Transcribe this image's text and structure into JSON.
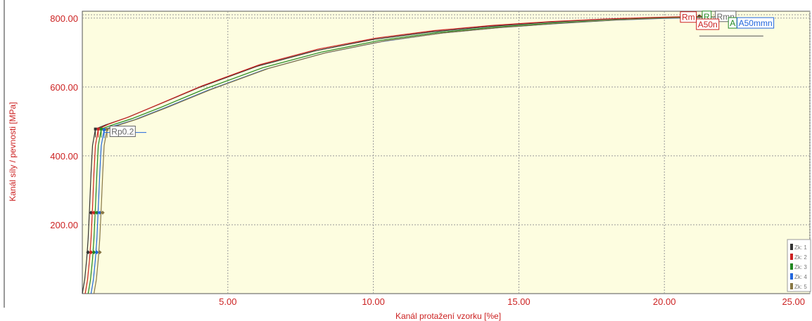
{
  "chart_data": {
    "type": "line",
    "xlabel": "Kanál protažení vzorku  [%e]",
    "ylabel": "Kanál síly / pevnosti  [MPa]",
    "xlim": [
      0,
      25
    ],
    "ylim": [
      0,
      820
    ],
    "x_ticks": [
      "5.00",
      "10.00",
      "15.00",
      "20.00",
      "25.00"
    ],
    "y_ticks": [
      "200.00",
      "400.00",
      "600.00",
      "800.00"
    ],
    "grid": true,
    "plot_background": "#fdfde0",
    "legend": {
      "placement": "bottom-right",
      "entries": [
        {
          "label": "Zk: 1",
          "color": "#333333"
        },
        {
          "label": "Zk: 2",
          "color": "#cc2222"
        },
        {
          "label": "Zk: 3",
          "color": "#228822"
        },
        {
          "label": "Zk: 4",
          "color": "#2266dd"
        },
        {
          "label": "Zk: 5",
          "color": "#887744"
        }
      ]
    },
    "series": [
      {
        "name": "Zk: 1",
        "color": "#333333",
        "x": [
          0.0,
          0.08,
          0.15,
          0.2,
          0.25,
          0.3,
          0.35,
          0.45,
          0.8,
          1.5,
          2.5,
          4.0,
          6.0,
          8.0,
          10.0,
          12.0,
          14.0,
          16.0,
          18.0,
          19.5,
          20.5,
          21.0,
          21.2
        ],
        "y": [
          0,
          40,
          100,
          160,
          250,
          350,
          430,
          478,
          490,
          510,
          545,
          598,
          660,
          705,
          738,
          760,
          776,
          788,
          797,
          801,
          803,
          804,
          805
        ]
      },
      {
        "name": "Zk: 2",
        "color": "#cc2222",
        "x": [
          0.1,
          0.18,
          0.25,
          0.3,
          0.35,
          0.4,
          0.45,
          0.55,
          0.9,
          1.6,
          2.6,
          4.1,
          6.1,
          8.1,
          10.1,
          12.1,
          14.1,
          16.1,
          18.1,
          19.6,
          20.6,
          21.2,
          21.4
        ],
        "y": [
          0,
          40,
          100,
          160,
          250,
          350,
          430,
          478,
          492,
          513,
          549,
          603,
          665,
          710,
          742,
          764,
          779,
          790,
          798,
          802,
          804,
          805,
          806
        ]
      },
      {
        "name": "Zk: 3",
        "color": "#228822",
        "x": [
          0.2,
          0.28,
          0.35,
          0.4,
          0.45,
          0.5,
          0.55,
          0.65,
          1.0,
          1.7,
          2.7,
          4.2,
          6.2,
          8.2,
          10.2,
          12.2,
          14.2,
          16.2,
          18.2,
          19.8,
          20.8,
          21.3,
          21.5
        ],
        "y": [
          0,
          40,
          100,
          160,
          250,
          350,
          430,
          478,
          489,
          508,
          541,
          594,
          656,
          701,
          735,
          758,
          774,
          786,
          795,
          800,
          802,
          804,
          805
        ]
      },
      {
        "name": "Zk: 4",
        "color": "#2266dd",
        "x": [
          0.3,
          0.38,
          0.45,
          0.5,
          0.55,
          0.6,
          0.65,
          0.75,
          1.1,
          1.8,
          2.8,
          4.3,
          6.3,
          8.3,
          10.3,
          12.3,
          14.3,
          16.3,
          18.3,
          19.9,
          21.0,
          21.6,
          21.8
        ],
        "y": [
          0,
          40,
          100,
          160,
          250,
          350,
          430,
          476,
          487,
          505,
          538,
          590,
          652,
          698,
          732,
          756,
          772,
          784,
          794,
          799,
          801,
          803,
          804
        ]
      },
      {
        "name": "Zk: 5",
        "color": "#887744",
        "x": [
          0.4,
          0.48,
          0.55,
          0.6,
          0.65,
          0.7,
          0.75,
          0.85,
          1.2,
          1.9,
          2.9,
          4.4,
          6.4,
          8.4,
          10.4,
          12.4,
          14.4,
          16.4,
          18.4,
          20.0,
          21.1,
          21.7,
          21.9
        ],
        "y": [
          0,
          40,
          100,
          160,
          250,
          350,
          430,
          477,
          488,
          507,
          540,
          592,
          654,
          700,
          734,
          757,
          773,
          785,
          795,
          800,
          802,
          804,
          805
        ]
      }
    ],
    "annotations": [
      {
        "text": "Rp0.2",
        "color": "#666666",
        "x": 0.95,
        "y": 462
      },
      {
        "text": "Rm",
        "color": "#cc2222",
        "x": 20.55,
        "y": 794
      },
      {
        "text": "R",
        "color": "#228822",
        "x": 21.3,
        "y": 796
      },
      {
        "text": "Rmn",
        "color": "#666666",
        "x": 21.75,
        "y": 796
      },
      {
        "text": "A50n",
        "color": "#cc2222",
        "x": 21.1,
        "y": 773
      },
      {
        "text": "A",
        "color": "#228822",
        "x": 22.2,
        "y": 777
      },
      {
        "text": "A50mmn",
        "color": "#2266dd",
        "x": 22.5,
        "y": 777
      }
    ]
  }
}
